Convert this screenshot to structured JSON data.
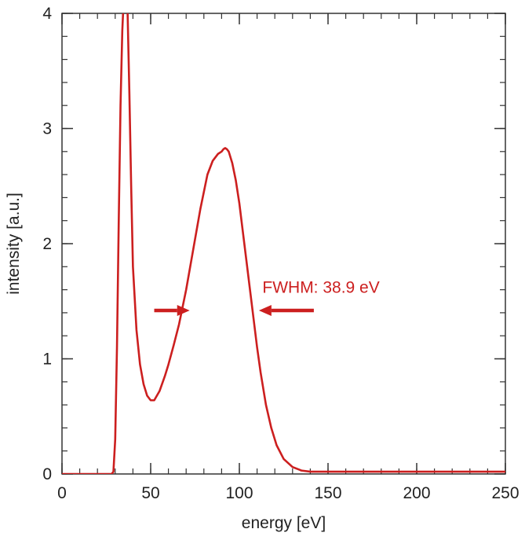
{
  "chart_data": {
    "type": "line",
    "title": "",
    "xlabel": "energy [eV]",
    "ylabel": "intensity [a.u.]",
    "xlim": [
      0,
      250
    ],
    "ylim": [
      0,
      4
    ],
    "xticks": [
      0,
      50,
      100,
      150,
      200,
      250
    ],
    "yticks": [
      0,
      1,
      2,
      3,
      4
    ],
    "x_minor_step": 10,
    "y_minor_step": 0.2,
    "grid": false,
    "line_color": "#cc1f1f",
    "series": [
      {
        "x": [
          0,
          28,
          29,
          30,
          31,
          32,
          33,
          34,
          35,
          36,
          37,
          38,
          39,
          40,
          42,
          44,
          46,
          48,
          50,
          52,
          55,
          58,
          60,
          63,
          66,
          70,
          74,
          78,
          82,
          85,
          88,
          90,
          91,
          92,
          93,
          94,
          96,
          98,
          100,
          102,
          104,
          106,
          108,
          110,
          112,
          115,
          118,
          121,
          125,
          130,
          135,
          140,
          145,
          150,
          160,
          170,
          180,
          200,
          220,
          250
        ],
        "y": [
          0,
          0,
          0.02,
          0.3,
          1.1,
          2.2,
          3.2,
          3.85,
          4.2,
          4.3,
          4.0,
          3.3,
          2.5,
          1.8,
          1.25,
          0.95,
          0.78,
          0.68,
          0.64,
          0.64,
          0.72,
          0.85,
          0.95,
          1.12,
          1.3,
          1.6,
          1.95,
          2.3,
          2.6,
          2.72,
          2.78,
          2.8,
          2.82,
          2.83,
          2.82,
          2.8,
          2.7,
          2.55,
          2.35,
          2.1,
          1.85,
          1.6,
          1.35,
          1.1,
          0.88,
          0.6,
          0.4,
          0.25,
          0.13,
          0.06,
          0.03,
          0.02,
          0.02,
          0.02,
          0.02,
          0.02,
          0.02,
          0.02,
          0.02,
          0.02
        ]
      }
    ],
    "annotations": [
      {
        "text": "FWHM: 38.9 eV",
        "color": "#cc1f1f",
        "text_x": 113,
        "text_y": 1.62,
        "arrow_left": {
          "from_x": 52,
          "to_x": 72,
          "y": 1.42
        },
        "arrow_right": {
          "from_x": 142,
          "to_x": 111,
          "y": 1.42
        }
      }
    ]
  }
}
